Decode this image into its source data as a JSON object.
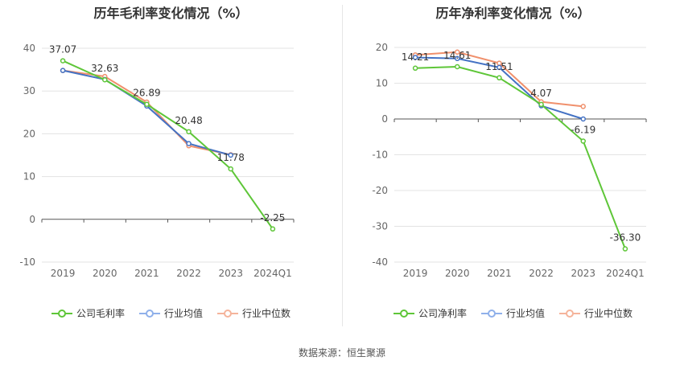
{
  "source_label": "数据来源：恒生聚源",
  "chart_data": [
    {
      "type": "line",
      "title": "历年毛利率变化情况（%）",
      "categories": [
        "2019",
        "2020",
        "2021",
        "2022",
        "2023",
        "2024Q1"
      ],
      "ylim": [
        -10,
        40
      ],
      "yticks": [
        -10,
        0,
        10,
        20,
        30,
        40
      ],
      "grid": true,
      "legend_position": "bottom",
      "series": [
        {
          "name": "公司毛利率",
          "color": "#5ec638",
          "values": [
            37.07,
            32.63,
            26.89,
            20.48,
            11.78,
            -2.25
          ],
          "labels": [
            "37.07",
            "32.63",
            "26.89",
            "20.48",
            "11.78",
            "-2.25"
          ]
        },
        {
          "name": "行业均值",
          "color": "#4472c4",
          "values": [
            34.8,
            32.7,
            26.5,
            17.7,
            15.0,
            null
          ]
        },
        {
          "name": "行业中位数",
          "color": "#f0906c",
          "values": [
            34.8,
            33.4,
            27.4,
            17.2,
            15.1,
            null
          ]
        }
      ]
    },
    {
      "type": "line",
      "title": "历年净利率变化情况（%）",
      "categories": [
        "2019",
        "2020",
        "2021",
        "2022",
        "2023",
        "2024Q1"
      ],
      "ylim": [
        -40,
        20
      ],
      "yticks": [
        -40,
        -30,
        -20,
        -10,
        0,
        10,
        20
      ],
      "grid": true,
      "legend_position": "bottom",
      "series": [
        {
          "name": "公司净利率",
          "color": "#5ec638",
          "values": [
            14.21,
            14.61,
            11.51,
            4.07,
            -6.19,
            -36.3
          ],
          "labels": [
            "14.21",
            "14.61",
            "11.51",
            "4.07",
            "-6.19",
            "-36.30"
          ]
        },
        {
          "name": "行业均值",
          "color": "#4472c4",
          "values": [
            17.2,
            16.9,
            14.4,
            3.7,
            0.0,
            null
          ]
        },
        {
          "name": "行业中位数",
          "color": "#f0906c",
          "values": [
            17.9,
            18.7,
            15.6,
            4.8,
            3.5,
            null
          ]
        }
      ]
    }
  ]
}
